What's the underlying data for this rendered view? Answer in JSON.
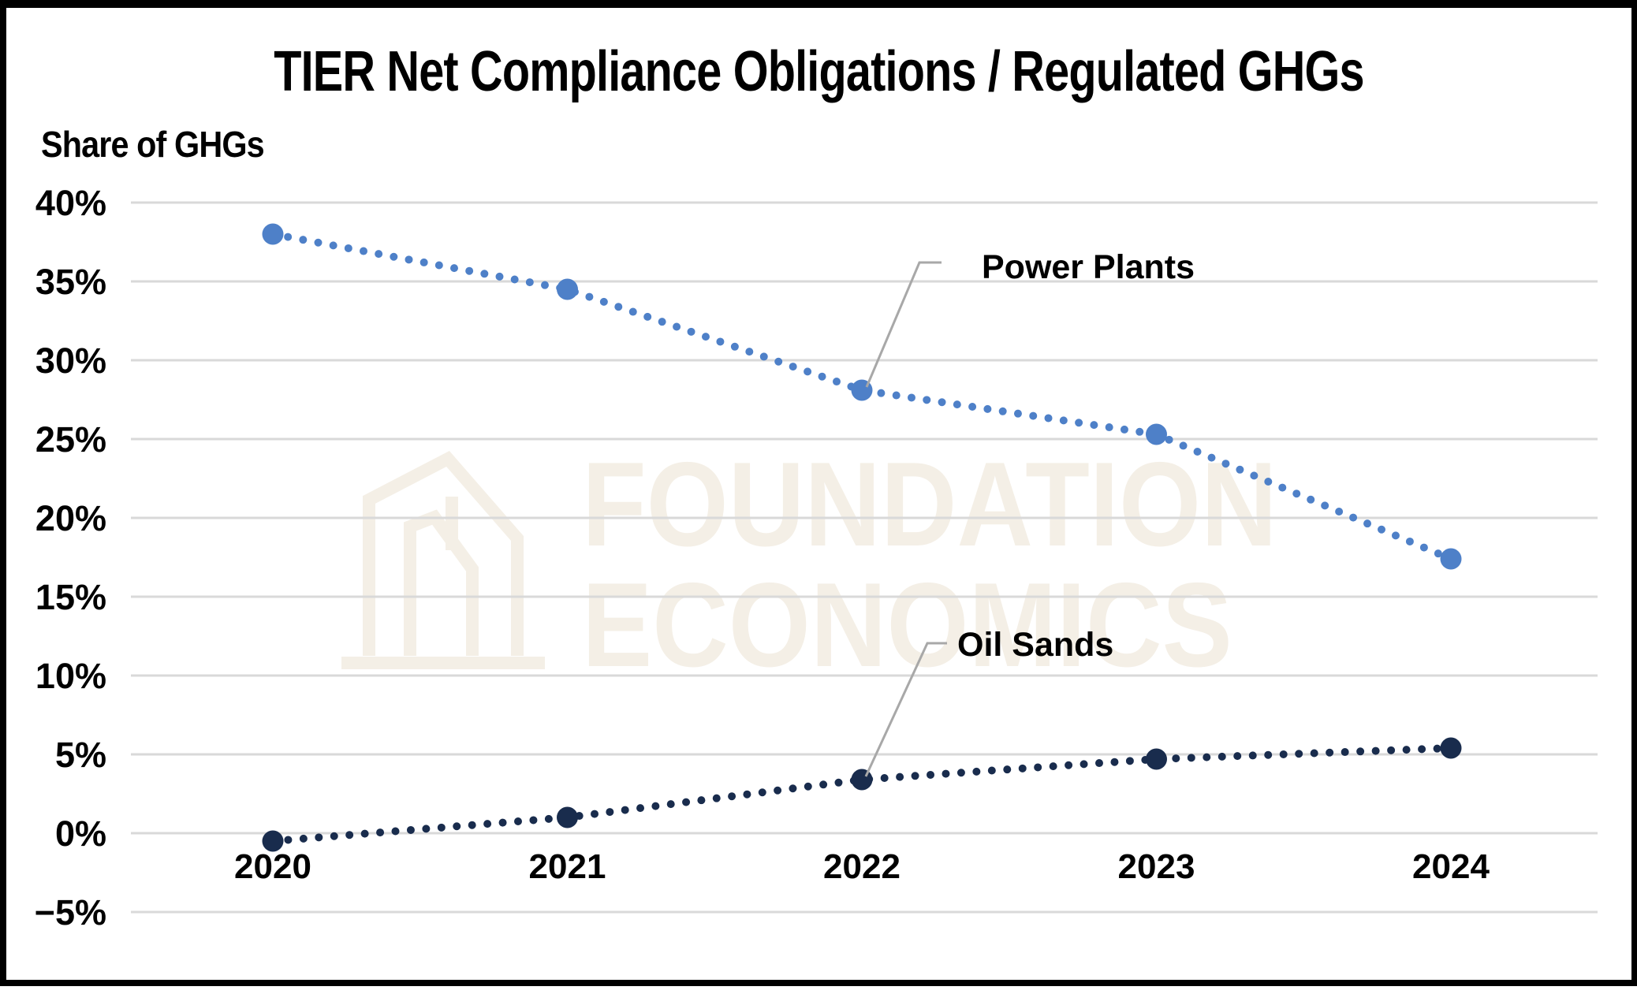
{
  "frame": {
    "border_color": "#000000",
    "background_color": "#ffffff"
  },
  "chart_data": {
    "type": "line",
    "title": "TIER Net Compliance Obligations / Regulated GHGs",
    "ylabel": "Share of GHGs",
    "xlabel": "",
    "x": [
      2020,
      2021,
      2022,
      2023,
      2024
    ],
    "series": [
      {
        "name": "Power Plants",
        "color": "#4E80C8",
        "line_style": "dotted",
        "marker": "circle",
        "values": [
          38.0,
          34.5,
          28.1,
          25.3,
          17.4
        ]
      },
      {
        "name": "Oil Sands",
        "color": "#192C4D",
        "line_style": "dotted",
        "marker": "circle",
        "values": [
          -0.5,
          1.0,
          3.4,
          4.7,
          5.4
        ]
      }
    ],
    "ylim": [
      -5,
      40
    ],
    "y_ticks": [
      {
        "value": 40,
        "label": "40%"
      },
      {
        "value": 35,
        "label": "35%"
      },
      {
        "value": 30,
        "label": "30%"
      },
      {
        "value": 25,
        "label": "25%"
      },
      {
        "value": 20,
        "label": "20%"
      },
      {
        "value": 15,
        "label": "15%"
      },
      {
        "value": 10,
        "label": "10%"
      },
      {
        "value": 5,
        "label": "5%"
      },
      {
        "value": 0,
        "label": "0%"
      },
      {
        "value": -5,
        "label": "−5%"
      }
    ],
    "grid": true,
    "grid_color": "#D9D9D9",
    "legend_position": "inline-annotations",
    "annotations": [
      {
        "text": "Power Plants",
        "series": "Power Plants",
        "at_x": 2022,
        "leader_color": "#A8A8A8"
      },
      {
        "text": "Oil Sands",
        "series": "Oil Sands",
        "at_x": 2022,
        "leader_color": "#A8A8A8"
      }
    ]
  },
  "watermark": {
    "lines": [
      "FOUNDATION",
      "ECONOMICS"
    ],
    "logo": "buildings-icon",
    "color": "#F4EFE6"
  }
}
